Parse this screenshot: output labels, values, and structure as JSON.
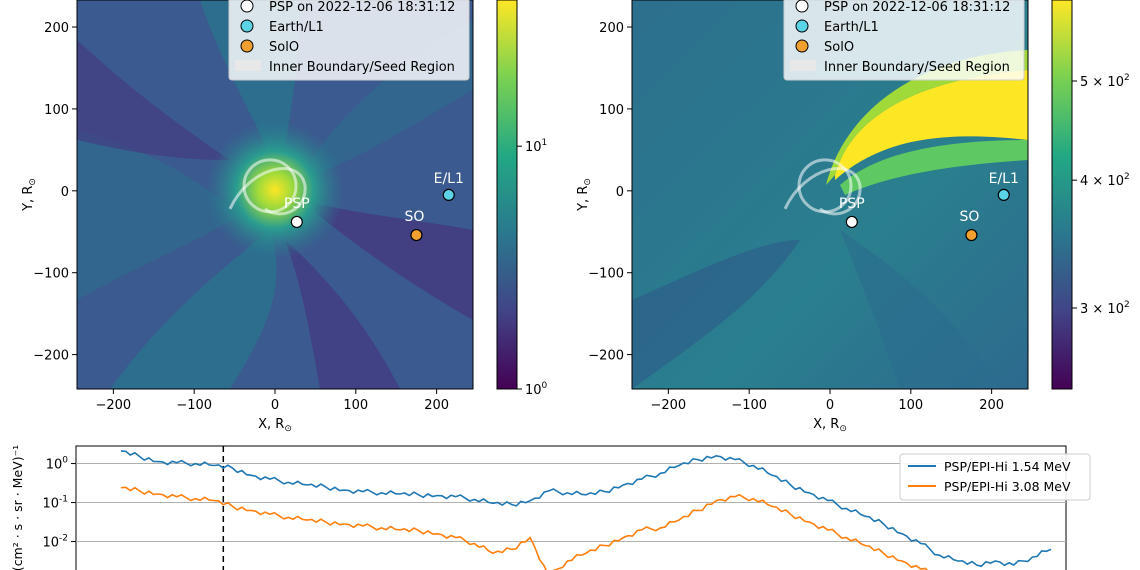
{
  "chart_data": [
    {
      "type": "heatmap",
      "panel": "left",
      "xlabel": "X, R",
      "ylabel": "Y, R",
      "xlim": [
        -245,
        245
      ],
      "ylim": [
        -242,
        233
      ],
      "xticks": [
        -200,
        -100,
        0,
        100,
        200
      ],
      "yticks": [
        -200,
        -100,
        0,
        100,
        200
      ],
      "colorbar": {
        "scale": "log",
        "range": [
          1,
          40
        ],
        "ticks": [
          {
            "label": "10",
            "exp": "0",
            "value": 1
          },
          {
            "label": "10",
            "exp": "1",
            "value": 10
          }
        ]
      },
      "legend": [
        "PSP on 2022-12-06 18:31:12",
        "Earth/L1",
        "SolO",
        "Inner Boundary/Seed Region"
      ],
      "markers": [
        {
          "label": "PSP",
          "x": 27,
          "y": -38,
          "color": "#ffffff"
        },
        {
          "label": "E/L1",
          "x": 215,
          "y": -5,
          "color": "#5bd3e6"
        },
        {
          "label": "SO",
          "x": 175,
          "y": -54,
          "color": "#f0a030"
        }
      ]
    },
    {
      "type": "heatmap",
      "panel": "right",
      "xlabel": "X, R",
      "ylabel": "Y, R",
      "xlim": [
        -245,
        245
      ],
      "ylim": [
        -242,
        233
      ],
      "xticks": [
        -200,
        -100,
        0,
        100,
        200
      ],
      "yticks": [
        -200,
        -100,
        0,
        100,
        200
      ],
      "colorbar": {
        "scale": "log",
        "range": [
          250,
          600
        ],
        "ticks": [
          {
            "label": "3 × 10",
            "exp": "2",
            "value": 300
          },
          {
            "label": "4 × 10",
            "exp": "2",
            "value": 400
          },
          {
            "label": "5 × 10",
            "exp": "2",
            "value": 500
          }
        ]
      },
      "legend": [
        "PSP on 2022-12-06 18:31:12",
        "Earth/L1",
        "SolO",
        "Inner Boundary/Seed Region"
      ],
      "markers": [
        {
          "label": "PSP",
          "x": 27,
          "y": -38,
          "color": "#ffffff"
        },
        {
          "label": "E/L1",
          "x": 215,
          "y": -5,
          "color": "#5bd3e6"
        },
        {
          "label": "SO",
          "x": 175,
          "y": -54,
          "color": "#f0a030"
        }
      ]
    },
    {
      "type": "line",
      "panel": "bottom",
      "ylabel": "(cm² · s · sr · MeV)⁻¹",
      "yscale": "log",
      "yticks": [
        {
          "label": "10",
          "exp": "0",
          "value": 0
        },
        {
          "label": "10",
          "exp": "-1",
          "value": -1
        },
        {
          "label": "10",
          "exp": "-2",
          "value": -2
        }
      ],
      "x": [
        0,
        2,
        4,
        6,
        8,
        10,
        12,
        14,
        16,
        18,
        20,
        22,
        24,
        26,
        28,
        30,
        32,
        34,
        36,
        38,
        40,
        42,
        44,
        46,
        48,
        50,
        52,
        54,
        56,
        58,
        60,
        62,
        64,
        66,
        68,
        70,
        72,
        74,
        76,
        78,
        80,
        82,
        84,
        86,
        88,
        90,
        92,
        94,
        96,
        98,
        100
      ],
      "vline_x": 11,
      "series": [
        {
          "name": "PSP/EPI-Hi 1.54 MeV",
          "color": "#1f77b4",
          "values": [
            0.32,
            0.18,
            0.05,
            0.02,
            0.0,
            -0.05,
            -0.12,
            -0.3,
            -0.4,
            -0.48,
            -0.55,
            -0.6,
            -0.68,
            -0.72,
            -0.75,
            -0.78,
            -0.8,
            -0.82,
            -0.85,
            -0.92,
            -1.02,
            -1.05,
            -0.95,
            -0.7,
            -0.75,
            -0.8,
            -0.72,
            -0.55,
            -0.4,
            -0.25,
            -0.05,
            0.1,
            0.2,
            0.1,
            -0.05,
            -0.3,
            -0.55,
            -0.75,
            -0.95,
            -1.15,
            -1.35,
            -1.55,
            -1.8,
            -2.05,
            -2.35,
            -2.5,
            -2.6,
            -2.5,
            -2.6,
            -2.4,
            -2.2
          ]
        },
        {
          "name": "PSP/EPI-Hi 3.08 MeV",
          "color": "#ff7f0e",
          "values": [
            -0.62,
            -0.7,
            -0.78,
            -0.85,
            -0.9,
            -0.95,
            -1.1,
            -1.2,
            -1.3,
            -1.38,
            -1.45,
            -1.5,
            -1.55,
            -1.6,
            -1.65,
            -1.7,
            -1.72,
            -1.8,
            -1.9,
            -2.05,
            -2.3,
            -2.2,
            -1.9,
            -2.9,
            -2.5,
            -2.3,
            -2.1,
            -1.9,
            -1.7,
            -1.65,
            -1.45,
            -1.2,
            -0.95,
            -0.85,
            -0.9,
            -1.1,
            -1.3,
            -1.5,
            -1.7,
            -1.9,
            -2.1,
            -2.3,
            -2.5,
            -2.7,
            -2.9,
            -3.0,
            -3.0,
            -3.0,
            -3.0,
            -3.0,
            -3.0
          ]
        }
      ]
    }
  ]
}
